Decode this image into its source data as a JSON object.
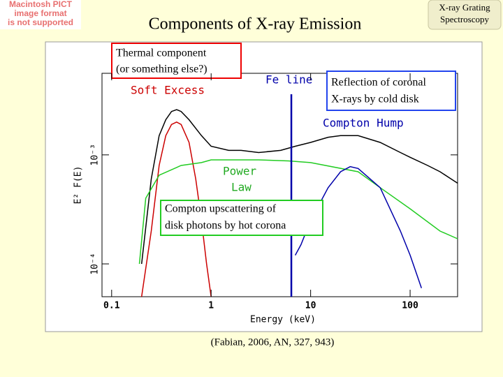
{
  "chart_data": {
    "type": "line",
    "title": "Components of X-ray Emission",
    "corner_note": "X-ray Grating Spectroscopy",
    "placeholder": [
      "Macintosh PICT",
      "image format",
      "is not supported"
    ],
    "xlabel": "Energy (keV)",
    "ylabel": "E² F(E)",
    "xscale": "log",
    "yscale": "log",
    "xlim": [
      0.08,
      300
    ],
    "ylim": [
      5e-05,
      0.0056
    ],
    "xticks": [
      0.1,
      1,
      10,
      100
    ],
    "yticks": [
      {
        "value": 0.001,
        "label": "10⁻³"
      },
      {
        "value": 0.0001,
        "label": "10⁻⁴"
      }
    ],
    "series": [
      {
        "color": "#000000",
        "x": [
          0.2,
          0.25,
          0.3,
          0.35,
          0.4,
          0.45,
          0.5,
          0.6,
          0.8,
          1,
          1.5,
          2,
          3,
          5,
          7,
          10,
          15,
          20,
          30,
          50,
          80,
          100,
          150,
          200,
          300
        ],
        "values": [
          0.0001,
          0.0006,
          0.0015,
          0.0021,
          0.0025,
          0.0026,
          0.0025,
          0.0021,
          0.0015,
          0.0012,
          0.0011,
          0.0011,
          0.00105,
          0.0011,
          0.0012,
          0.0013,
          0.00145,
          0.0015,
          0.0015,
          0.0013,
          0.00105,
          0.00095,
          0.0008,
          0.0007,
          0.00055
        ]
      },
      {
        "color": "#cc0000",
        "x": [
          0.2,
          0.25,
          0.3,
          0.35,
          0.4,
          0.45,
          0.5,
          0.6,
          0.7,
          0.8,
          0.9,
          1
        ],
        "values": [
          5e-05,
          0.0002,
          0.0008,
          0.0015,
          0.0019,
          0.002,
          0.0019,
          0.0013,
          0.0006,
          0.00025,
          0.0001,
          5e-05
        ]
      },
      {
        "color": "#22cc22",
        "x": [
          0.19,
          0.22,
          0.3,
          0.5,
          0.8,
          1,
          3,
          6,
          10,
          30,
          50,
          100,
          200,
          300
        ],
        "values": [
          0.0001,
          0.0004,
          0.00065,
          0.0008,
          0.00085,
          0.0009,
          0.0009,
          0.00088,
          0.00085,
          0.0007,
          0.0005,
          0.00032,
          0.0002,
          0.00017
        ]
      },
      {
        "color": "#0000aa",
        "x": [
          7,
          8,
          10,
          15,
          20,
          25,
          30,
          50,
          80,
          100,
          130
        ],
        "values": [
          0.00012,
          0.00015,
          0.00025,
          0.0005,
          0.0007,
          0.00078,
          0.00075,
          0.0005,
          0.0002,
          0.00012,
          6e-05
        ]
      }
    ],
    "fe_line_x": 6.4,
    "annotations": {
      "thermal": [
        "Thermal component",
        "(or something else?)"
      ],
      "soft_excess": "Soft Excess",
      "fe_line": "Fe line",
      "reflection": [
        "Reflection of coronal",
        "X-rays by cold disk"
      ],
      "compton_hump": "Compton Hump",
      "power_law": [
        "Power",
        "Law"
      ],
      "upscatter": [
        "Compton upscattering of",
        "disk photons by hot corona"
      ]
    },
    "citation": "(Fabian, 2006, AN, 327, 943)"
  }
}
